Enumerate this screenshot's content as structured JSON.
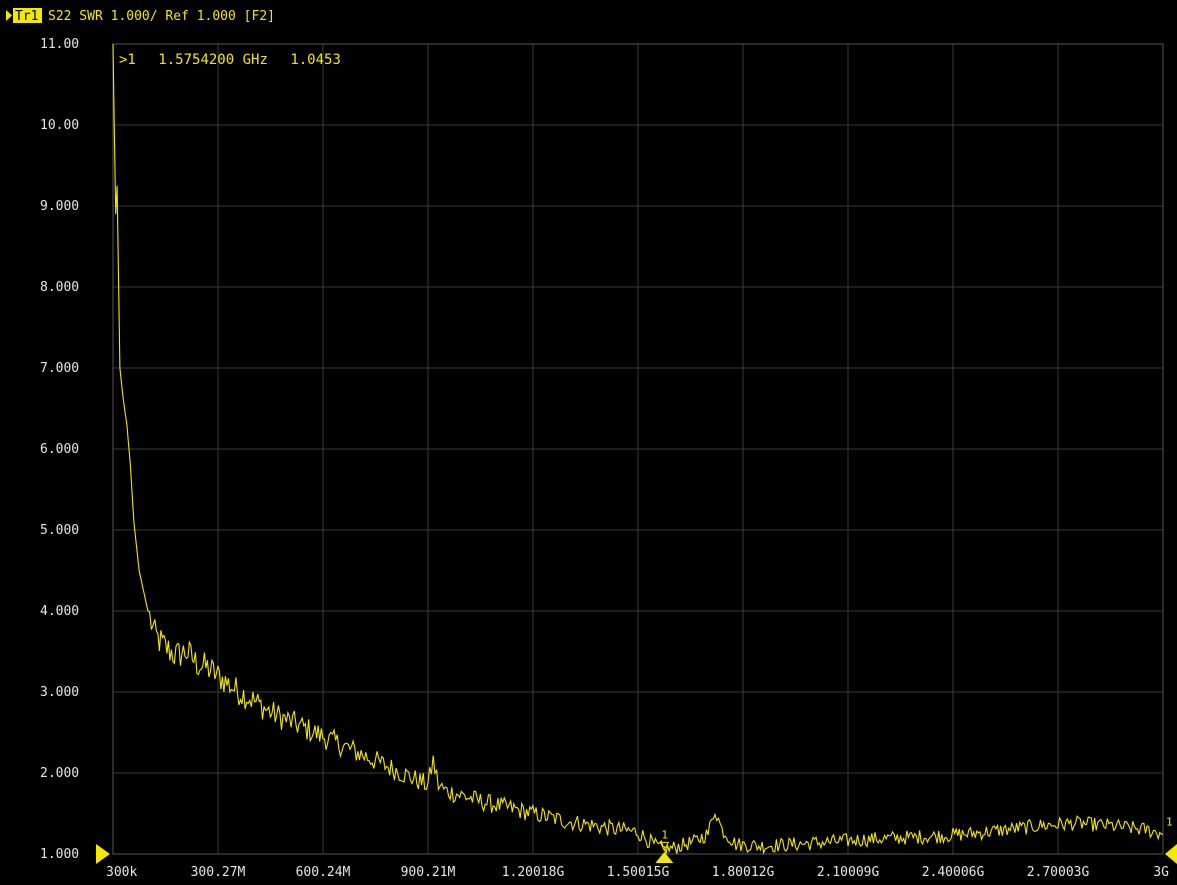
{
  "header": {
    "trace_label": "Tr1",
    "description": "S22 SWR 1.000/ Ref 1.000 [F2]"
  },
  "marker": {
    "id": "1",
    "readout_prefix": ">1",
    "frequency": "1.5754200 GHz",
    "value": "1.0453",
    "frequency_ghz": 1.57542
  },
  "colors": {
    "background": "#000000",
    "trace": "#f4e800",
    "grid": "#3a3a3a",
    "tick_text": "#e6e6e6"
  },
  "chart_data": {
    "type": "line",
    "title": "",
    "xlabel": "",
    "ylabel": "",
    "x_unit": "GHz",
    "xlim": [
      0.0003,
      3.0
    ],
    "ylim": [
      1.0,
      11.0
    ],
    "grid": true,
    "x_tick_labels": [
      "300k",
      "300.27M",
      "600.24M",
      "900.21M",
      "1.20018G",
      "1.50015G",
      "1.80012G",
      "2.10009G",
      "2.40006G",
      "2.70003G",
      "3G"
    ],
    "y_tick_labels": [
      "11.00",
      "10.00",
      "9.000",
      "8.000",
      "7.000",
      "6.000",
      "5.000",
      "4.000",
      "3.000",
      "2.000",
      "1.000"
    ],
    "series": [
      {
        "values": [
          [
            0.0003,
            11.0
          ],
          [
            0.008,
            8.9
          ],
          [
            0.012,
            9.25
          ],
          [
            0.02,
            7.0
          ],
          [
            0.03,
            6.6
          ],
          [
            0.04,
            6.3
          ],
          [
            0.05,
            5.8
          ],
          [
            0.06,
            5.1
          ],
          [
            0.075,
            4.5
          ],
          [
            0.09,
            4.2
          ],
          [
            0.1,
            4.0
          ],
          [
            0.12,
            3.7
          ],
          [
            0.15,
            3.55
          ],
          [
            0.18,
            3.45
          ],
          [
            0.21,
            3.5
          ],
          [
            0.24,
            3.35
          ],
          [
            0.27,
            3.3
          ],
          [
            0.3,
            3.2
          ],
          [
            0.33,
            3.1
          ],
          [
            0.36,
            3.0
          ],
          [
            0.4,
            2.9
          ],
          [
            0.45,
            2.75
          ],
          [
            0.5,
            2.65
          ],
          [
            0.55,
            2.55
          ],
          [
            0.6,
            2.45
          ],
          [
            0.65,
            2.35
          ],
          [
            0.7,
            2.25
          ],
          [
            0.75,
            2.15
          ],
          [
            0.8,
            2.05
          ],
          [
            0.85,
            1.95
          ],
          [
            0.9,
            1.85
          ],
          [
            0.915,
            2.15
          ],
          [
            0.93,
            1.85
          ],
          [
            0.95,
            1.78
          ],
          [
            1.0,
            1.72
          ],
          [
            1.05,
            1.65
          ],
          [
            1.1,
            1.6
          ],
          [
            1.15,
            1.55
          ],
          [
            1.2,
            1.5
          ],
          [
            1.25,
            1.45
          ],
          [
            1.3,
            1.4
          ],
          [
            1.35,
            1.37
          ],
          [
            1.4,
            1.33
          ],
          [
            1.45,
            1.3
          ],
          [
            1.5,
            1.27
          ],
          [
            1.55,
            1.1
          ],
          [
            1.58,
            1.05
          ],
          [
            1.62,
            1.1
          ],
          [
            1.66,
            1.15
          ],
          [
            1.7,
            1.25
          ],
          [
            1.72,
            1.55
          ],
          [
            1.74,
            1.3
          ],
          [
            1.78,
            1.12
          ],
          [
            1.85,
            1.1
          ],
          [
            1.95,
            1.12
          ],
          [
            2.05,
            1.15
          ],
          [
            2.15,
            1.18
          ],
          [
            2.25,
            1.2
          ],
          [
            2.35,
            1.22
          ],
          [
            2.45,
            1.25
          ],
          [
            2.55,
            1.3
          ],
          [
            2.65,
            1.35
          ],
          [
            2.75,
            1.38
          ],
          [
            2.85,
            1.35
          ],
          [
            2.95,
            1.3
          ],
          [
            3.0,
            1.25
          ]
        ]
      }
    ]
  }
}
